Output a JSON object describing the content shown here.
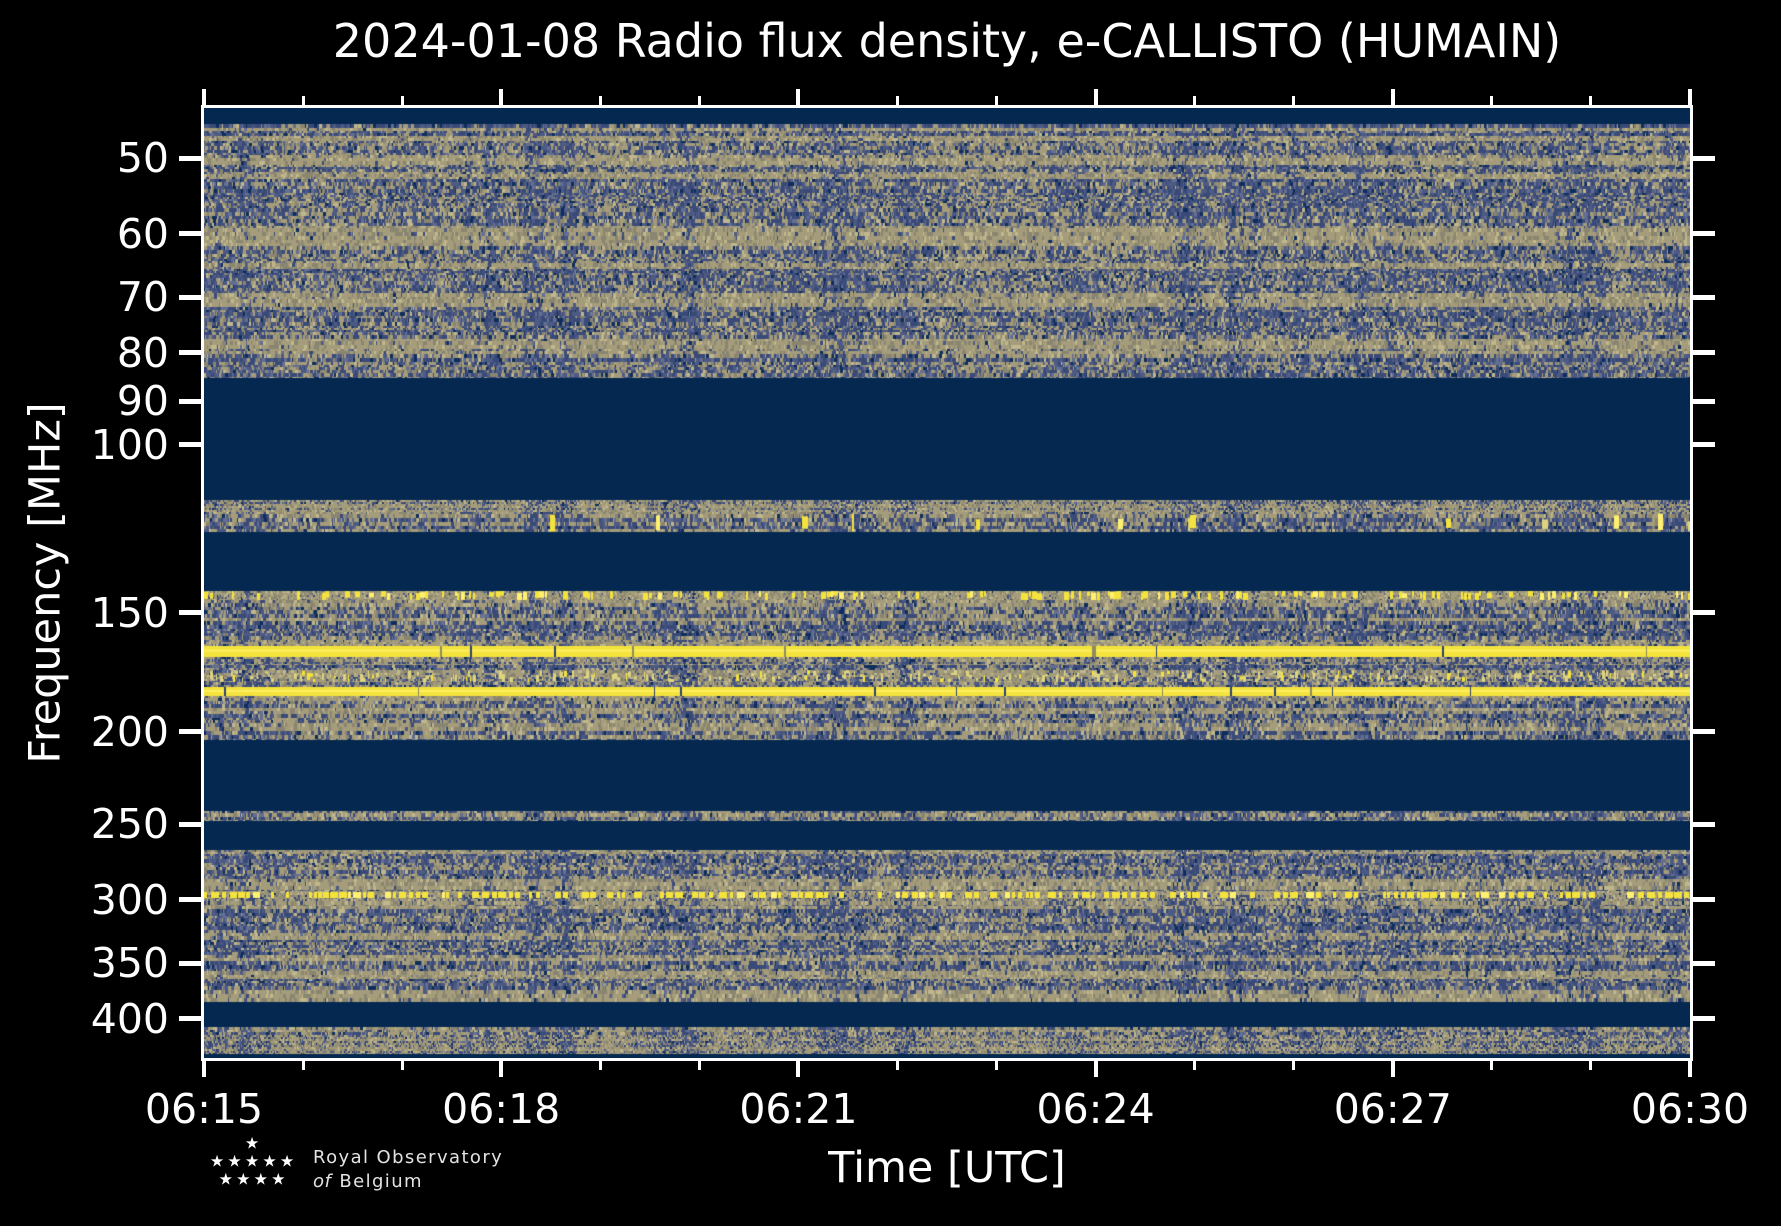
{
  "header": {
    "title": "2024-01-08 Radio flux density, e-CALLISTO (HUMAIN)"
  },
  "chart_data": {
    "type": "heatmap",
    "subtype": "radio-spectrogram",
    "title": "2024-01-08 Radio flux density, e-CALLISTO (HUMAIN)",
    "xlabel": "Time [UTC]",
    "ylabel": "Frequency [MHz]",
    "x_tick_labels": [
      "06:15",
      "06:18",
      "06:21",
      "06:24",
      "06:27",
      "06:30"
    ],
    "x_minor_ticks_per_interval": 2,
    "x_range": [
      "06:15",
      "06:30"
    ],
    "y_scale": "log",
    "y_tick_values": [
      50,
      60,
      70,
      80,
      90,
      100,
      150,
      200,
      250,
      300,
      350,
      400
    ],
    "freq_range_mhz": [
      44.3,
      440
    ],
    "grid": false,
    "legend": null,
    "palette": {
      "navy": "#042850",
      "blue": [
        "#0e2d5a",
        "#3a4a78",
        "#4c5a84",
        "#636e92"
      ],
      "tan": [
        "#8a8570",
        "#a49c7a",
        "#c0b78c"
      ],
      "pale": "#ded47f",
      "yellow": "#f5e33d",
      "bright": "#fff170"
    },
    "bands": [
      {
        "f_lo": 44.3,
        "f_hi": 46.0,
        "kind": "blank"
      },
      {
        "f_lo": 46.0,
        "f_hi": 85.0,
        "kind": "noise",
        "tan": 0.3,
        "strong": [
          [
            46.3,
            46.9
          ],
          [
            47.3,
            47.9
          ],
          [
            49.6,
            50.7
          ],
          [
            51.6,
            52.5
          ],
          [
            59.0,
            61.8
          ],
          [
            64.5,
            65.5
          ],
          [
            69.5,
            71.5
          ],
          [
            77.5,
            80.3
          ]
        ]
      },
      {
        "f_lo": 85.0,
        "f_hi": 114.2,
        "kind": "blank"
      },
      {
        "f_lo": 114.2,
        "f_hi": 117.6,
        "kind": "dense",
        "tan": 0.55
      },
      {
        "f_lo": 117.6,
        "f_hi": 123.4,
        "kind": "noise",
        "tan": 0.42,
        "blobs": "ramp-right"
      },
      {
        "f_lo": 123.4,
        "f_hi": 142.2,
        "kind": "blank"
      },
      {
        "f_lo": 142.2,
        "f_hi": 145.5,
        "kind": "speckle_line"
      },
      {
        "f_lo": 145.5,
        "f_hi": 147.8,
        "kind": "noise",
        "tan": 0.5
      },
      {
        "f_lo": 147.8,
        "f_hi": 160.4,
        "kind": "noise",
        "tan": 0.3,
        "strong": [
          [
            152.0,
            153.5
          ]
        ]
      },
      {
        "f_lo": 160.4,
        "f_hi": 162.6,
        "kind": "noise",
        "tan": 0.58
      },
      {
        "f_lo": 162.6,
        "f_hi": 166.8,
        "kind": "bright_line"
      },
      {
        "f_lo": 166.8,
        "f_hi": 170.4,
        "kind": "noise",
        "tan": 0.55
      },
      {
        "f_lo": 170.4,
        "f_hi": 172.2,
        "kind": "noise",
        "tan": 0.33
      },
      {
        "f_lo": 172.2,
        "f_hi": 177.2,
        "kind": "pale_speckle"
      },
      {
        "f_lo": 177.2,
        "f_hi": 179.3,
        "kind": "noise",
        "tan": 0.33
      },
      {
        "f_lo": 179.3,
        "f_hi": 183.3,
        "kind": "bright_line"
      },
      {
        "f_lo": 183.3,
        "f_hi": 204.0,
        "kind": "noise",
        "tan": 0.32,
        "strong": [
          [
            183.5,
            185.5
          ],
          [
            189.0,
            192.0
          ],
          [
            196.5,
            200.5
          ]
        ]
      },
      {
        "f_lo": 204.0,
        "f_hi": 242.0,
        "kind": "blank"
      },
      {
        "f_lo": 242.0,
        "f_hi": 248.0,
        "kind": "noise",
        "tan": 0.48
      },
      {
        "f_lo": 248.0,
        "f_hi": 266.0,
        "kind": "blank"
      },
      {
        "f_lo": 266.0,
        "f_hi": 294.0,
        "kind": "noise",
        "tan": 0.34,
        "strong": [
          [
            266.2,
            268.6
          ],
          [
            286.0,
            293.0
          ]
        ]
      },
      {
        "f_lo": 294.0,
        "f_hi": 301.0,
        "kind": "dash_line"
      },
      {
        "f_lo": 301.0,
        "f_hi": 305.0,
        "kind": "noise",
        "tan": 0.55
      },
      {
        "f_lo": 305.0,
        "f_hi": 384.0,
        "kind": "noise",
        "tan": 0.3,
        "strong": [
          [
            305.5,
            308.0
          ],
          [
            325.0,
            330.0
          ],
          [
            342.0,
            347.0
          ],
          [
            357.0,
            363.0
          ],
          [
            374.0,
            383.0
          ]
        ]
      },
      {
        "f_lo": 384.0,
        "f_hi": 408.0,
        "kind": "blank"
      },
      {
        "f_lo": 408.0,
        "f_hi": 416.0,
        "kind": "noise",
        "tan": 0.46
      },
      {
        "f_lo": 416.0,
        "f_hi": 436.0,
        "kind": "dense",
        "tan": 0.62
      },
      {
        "f_lo": 436.0,
        "f_hi": 440.0,
        "kind": "blank"
      }
    ]
  },
  "footer": {
    "org_line1": "Royal Observatory",
    "org_line2_italic": "of",
    "org_line2": "Belgium",
    "star_rows": [
      1,
      5,
      4
    ]
  }
}
